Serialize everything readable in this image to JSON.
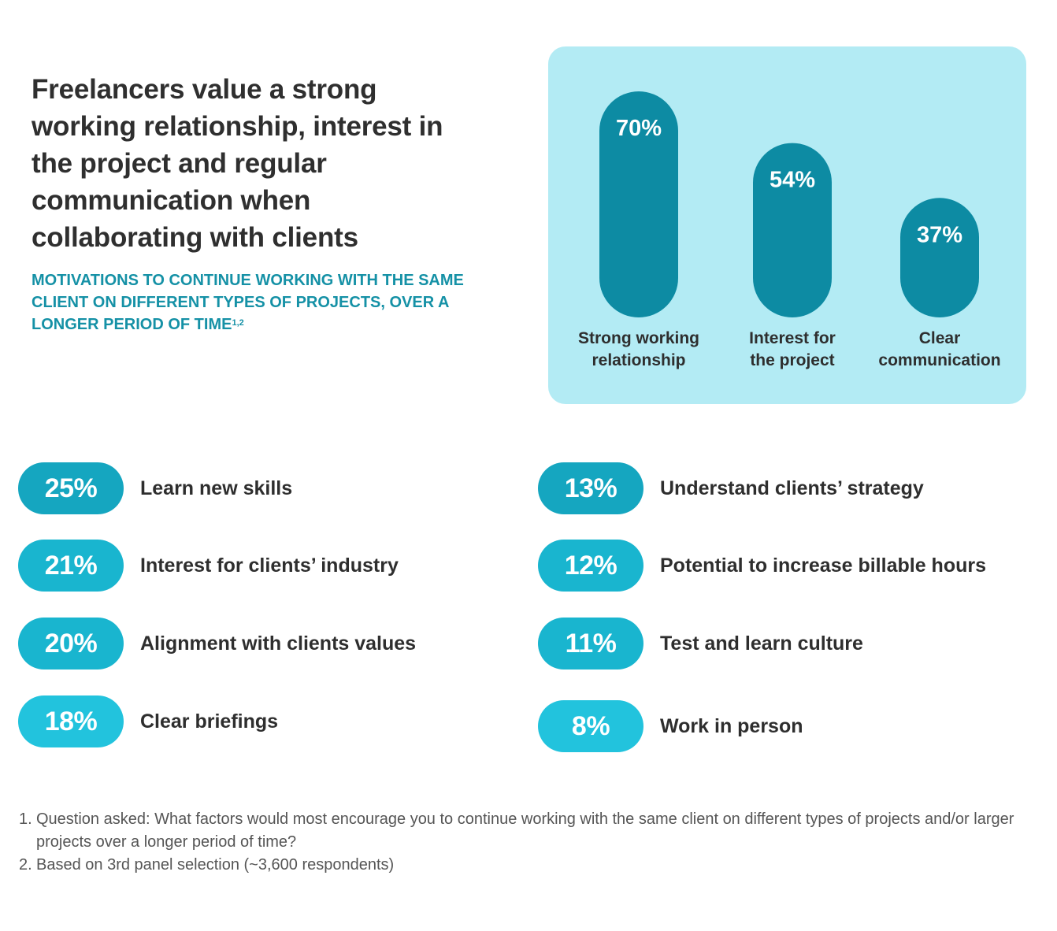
{
  "title": "Freelancers value a strong working relationship, interest in  the project and regular communication when collaborating with clients",
  "subtitle": "MOTIVATIONS TO CONTINUE WORKING WITH THE SAME CLIENT ON DIFFERENT TYPES OF PROJECTS, OVER A LONGER PERIOD OF TIME",
  "subtitle_ref": "1,2",
  "colors": {
    "panel_bg": "#b3ebf4",
    "bar": "#0d8ba3",
    "pill_dark": "#15a6c0",
    "pill_mid": "#19b5cf",
    "pill_light": "#22c3dd"
  },
  "chart_data": {
    "type": "bar",
    "categories": [
      "Strong working relationship",
      "Interest for the project",
      "Clear communication"
    ],
    "category_lines": [
      [
        "Strong working",
        "relationship"
      ],
      [
        "Interest for",
        "the project"
      ],
      [
        "Clear",
        "communication"
      ]
    ],
    "values": [
      70,
      54,
      37
    ],
    "value_labels": [
      "70%",
      "54%",
      "37%"
    ],
    "unit": "%"
  },
  "stats_left": [
    {
      "value": 25,
      "label": "25%",
      "text": "Learn new skills"
    },
    {
      "value": 21,
      "label": "21%",
      "text": "Interest for clients’ industry"
    },
    {
      "value": 20,
      "label": "20%",
      "text": "Alignment with clients values"
    },
    {
      "value": 18,
      "label": "18%",
      "text": "Clear briefings"
    }
  ],
  "stats_right": [
    {
      "value": 13,
      "label": "13%",
      "text": "Understand clients’ strategy"
    },
    {
      "value": 12,
      "label": "12%",
      "text": "Potential to increase billable hours"
    },
    {
      "value": 11,
      "label": "11%",
      "text": "Test and learn culture"
    },
    {
      "value": 8,
      "label": "8%",
      "text": "Work in person"
    }
  ],
  "footnotes": [
    {
      "num": "1.",
      "text": "Question asked: What factors would most encourage you to continue working with the same client on different types of projects and/or larger projects over a longer period of time?"
    },
    {
      "num": "2.",
      "text": "Based on 3rd panel selection (~3,600 respondents)"
    }
  ]
}
